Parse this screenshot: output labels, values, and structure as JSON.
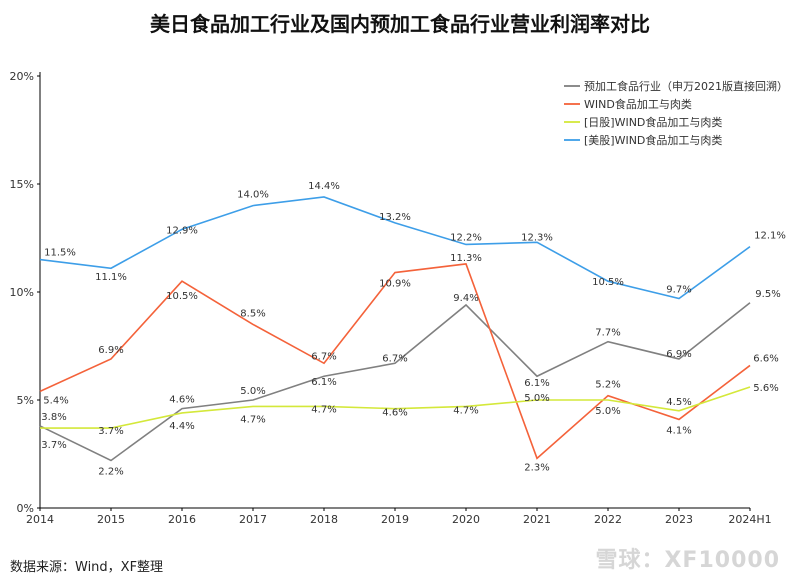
{
  "title": "美日食品加工行业及国内预加工食品行业营业利润率对比",
  "source": "数据来源：Wind，XF整理",
  "watermark": "雪球：XF10000",
  "chart_data": {
    "type": "line",
    "categories": [
      "2014",
      "2015",
      "2016",
      "2017",
      "2018",
      "2019",
      "2020",
      "2021",
      "2022",
      "2023",
      "2024H1"
    ],
    "ylim": [
      0,
      20
    ],
    "yticks": [
      "0%",
      "5%",
      "10%",
      "15%",
      "20%"
    ],
    "legend_position": "top-right",
    "series": [
      {
        "name": "预加工食品行业（申万2021版直接回溯）",
        "color": "#808080",
        "values": [
          3.8,
          2.2,
          4.6,
          5.0,
          6.1,
          6.7,
          9.4,
          6.1,
          7.7,
          6.9,
          9.5
        ],
        "labels": [
          "3.8%",
          "2.2%",
          "4.6%",
          "5.0%",
          "6.1%",
          "6.7%",
          "9.4%",
          "6.1%",
          "7.7%",
          "6.9%",
          "9.5%"
        ]
      },
      {
        "name": "WIND食品加工与肉类",
        "color": "#f4623a",
        "values": [
          5.4,
          6.9,
          10.5,
          8.5,
          6.7,
          10.9,
          11.3,
          2.3,
          5.2,
          4.1,
          6.6
        ],
        "labels": [
          "5.4%",
          "6.9%",
          "10.5%",
          "8.5%",
          "6.7%",
          "10.9%",
          "11.3%",
          "2.3%",
          "5.2%",
          "4.1%",
          "6.6%"
        ]
      },
      {
        "name": "[日股]WIND食品加工与肉类",
        "color": "#d4e83a",
        "values": [
          3.7,
          3.7,
          4.4,
          4.7,
          4.7,
          4.6,
          4.7,
          5.0,
          5.0,
          4.5,
          5.6
        ],
        "labels": [
          "3.7%",
          "3.7%",
          "4.4%",
          "4.7%",
          "4.7%",
          "4.6%",
          "4.7%",
          "5.0%",
          "5.0%",
          "4.5%",
          "5.6%"
        ]
      },
      {
        "name": "[美股]WIND食品加工与肉类",
        "color": "#3d9ee8",
        "values": [
          11.5,
          11.1,
          12.9,
          14.0,
          14.4,
          13.2,
          12.2,
          12.3,
          10.5,
          9.7,
          12.1
        ],
        "labels": [
          "11.5%",
          "11.1%",
          "12.9%",
          "14.0%",
          "14.4%",
          "13.2%",
          "12.2%",
          "12.3%",
          "10.5%",
          "9.7%",
          "12.1%"
        ]
      }
    ]
  }
}
